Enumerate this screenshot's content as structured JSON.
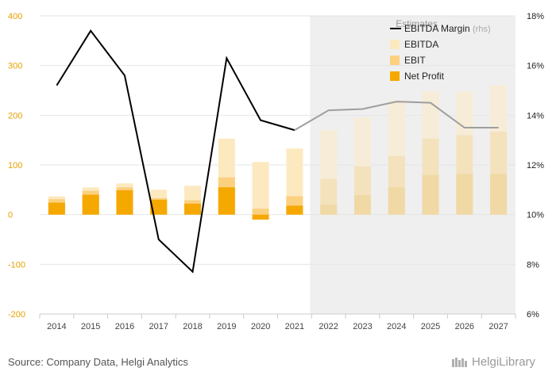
{
  "chart_data": {
    "type": "bar",
    "categories": [
      "2014",
      "2015",
      "2016",
      "2017",
      "2018",
      "2019",
      "2020",
      "2021",
      "2022",
      "2023",
      "2024",
      "2025",
      "2026",
      "2027"
    ],
    "series": [
      {
        "name": "EBITDA",
        "values": [
          37,
          55,
          63,
          50,
          58,
          153,
          106,
          133,
          170,
          195,
          230,
          248,
          248,
          260
        ]
      },
      {
        "name": "EBIT",
        "values": [
          31,
          48,
          55,
          33,
          29,
          75,
          12,
          37,
          72,
          97,
          118,
          153,
          160,
          167
        ]
      },
      {
        "name": "Net Profit",
        "values": [
          24,
          40,
          49,
          30,
          22,
          55,
          -10,
          18,
          20,
          39,
          55,
          80,
          82,
          82
        ]
      },
      {
        "name": "EBITDA Margin",
        "axis": "right",
        "values": [
          15.2,
          17.4,
          15.6,
          9.0,
          7.7,
          16.3,
          13.8,
          13.4,
          14.2,
          14.25,
          14.55,
          14.5,
          13.5,
          13.5
        ]
      }
    ],
    "estimate_start_index": 8,
    "ylim": [
      -200,
      400
    ],
    "yticks": [
      "400",
      "300",
      "200",
      "100",
      "0",
      "-100",
      "-200"
    ],
    "y2lim": [
      6,
      18
    ],
    "y2ticks": [
      "18%",
      "16%",
      "14%",
      "12%",
      "10%",
      "8%",
      "6%"
    ],
    "legend": {
      "position": "top-right",
      "items": [
        "EBITDA Margin",
        "EBITDA",
        "EBIT",
        "Net Profit"
      ],
      "margin_suffix": "(rhs)"
    },
    "estimates_label": "Estimates",
    "colors": {
      "ebitda": "#fde9c0",
      "ebit": "#fbd17f",
      "net_profit": "#f5a800",
      "ebitda_est": "#f7ecd7",
      "ebit_est": "#f4e2bd",
      "net_profit_est": "#f0d9a5",
      "margin_line": "#000000",
      "margin_line_est": "#9e9e9e",
      "estimate_band": "#efefef",
      "left_ticks": "#e6a100"
    },
    "grid": true
  },
  "footer": {
    "source": "Source: Company Data, Helgi Analytics",
    "logo": "HelgiLibrary"
  }
}
